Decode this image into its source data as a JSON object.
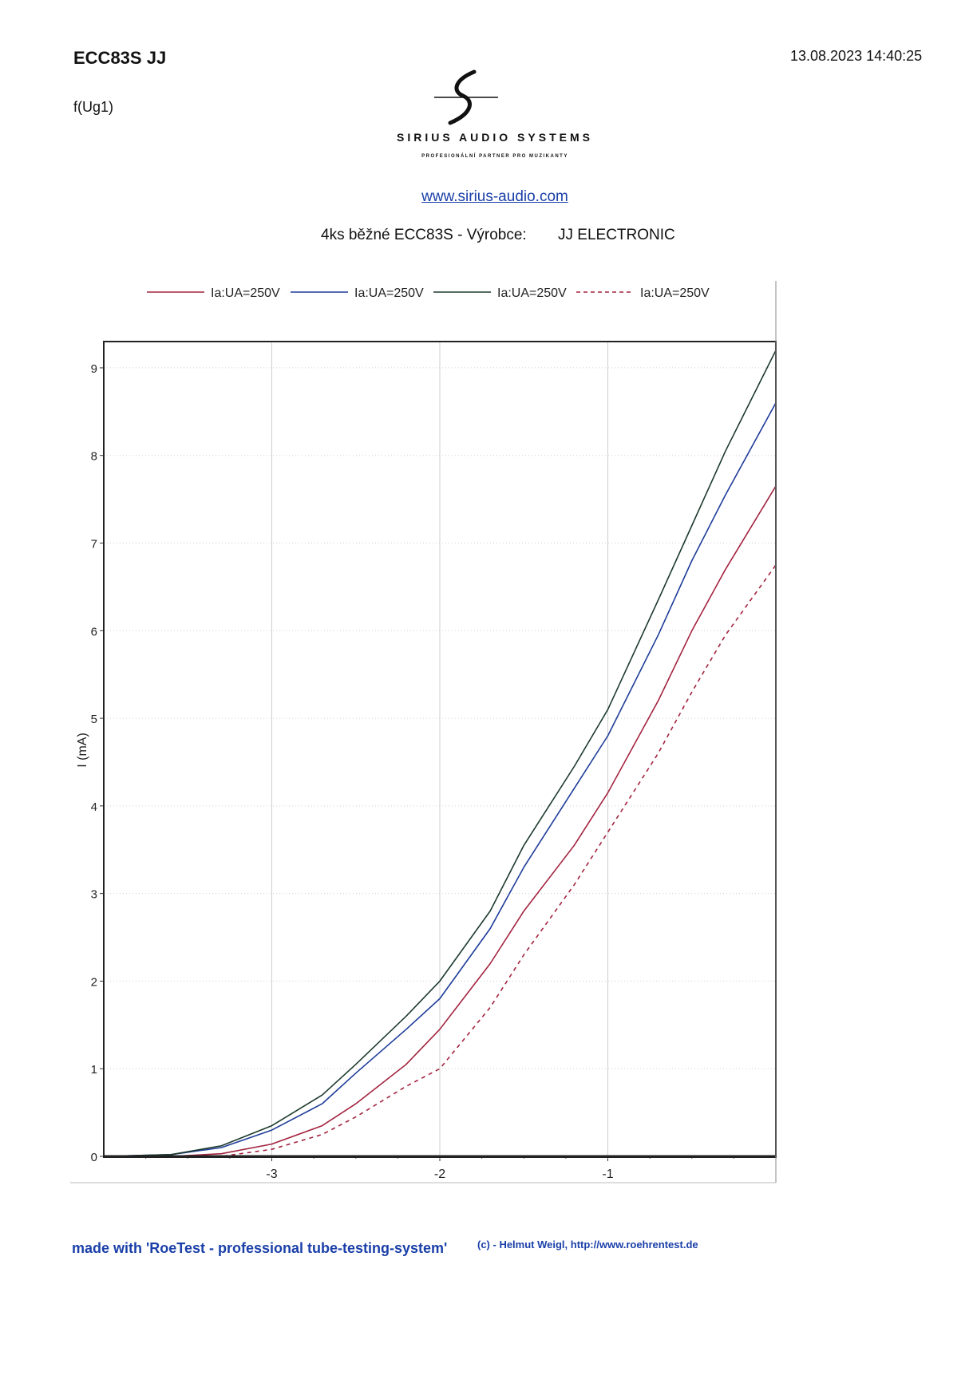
{
  "header": {
    "title": "ECC83S JJ",
    "timestamp": "13.08.2023  14:40:25",
    "function": "f(Ug1)"
  },
  "logo": {
    "name": "SIRIUS AUDIO SYSTEMS",
    "tagline": "PROFESIONÁLNÍ PARTNER PRO MUZIKANTY",
    "url": "www.sirius-audio.com"
  },
  "subtitle": {
    "description": "4ks běžné ECC83S - Výrobce:",
    "manufacturer": "JJ ELECTRONIC"
  },
  "footer": {
    "main": "made with 'RoeTest - professional tube-testing-system'",
    "credit": "(c) - Helmut Weigl, http://www.roehrentest.de"
  },
  "chart_data": {
    "type": "line",
    "title": "",
    "xlabel": "",
    "ylabel": "I (mA)",
    "xlim": [
      -4.0,
      0
    ],
    "ylim": [
      0,
      9.3
    ],
    "xticks": [
      -3,
      -2,
      -1
    ],
    "yticks": [
      0,
      1,
      2,
      3,
      4,
      5,
      6,
      7,
      8,
      9
    ],
    "grid": true,
    "legend_position": "top",
    "series": [
      {
        "name": "Ia:UA=250V",
        "color": "#a3233f",
        "dash": false,
        "x": [
          -4.0,
          -3.6,
          -3.3,
          -3.0,
          -2.7,
          -2.5,
          -2.2,
          -2.0,
          -1.7,
          -1.5,
          -1.2,
          -1.0,
          -0.7,
          -0.5,
          -0.3,
          0.0
        ],
        "y": [
          0.0,
          0.0,
          0.03,
          0.14,
          0.35,
          0.6,
          1.05,
          1.45,
          2.2,
          2.8,
          3.55,
          4.15,
          5.2,
          6.0,
          6.7,
          7.65
        ]
      },
      {
        "name": "Ia:UA=250V",
        "color": "#1e3c99",
        "dash": false,
        "x": [
          -4.0,
          -3.6,
          -3.3,
          -3.0,
          -2.7,
          -2.5,
          -2.2,
          -2.0,
          -1.7,
          -1.5,
          -1.2,
          -1.0,
          -0.7,
          -0.5,
          -0.3,
          0.0
        ],
        "y": [
          0.0,
          0.02,
          0.1,
          0.3,
          0.6,
          0.95,
          1.45,
          1.8,
          2.6,
          3.3,
          4.2,
          4.8,
          5.95,
          6.8,
          7.55,
          8.6
        ]
      },
      {
        "name": "Ia:UA=250V",
        "color": "#1c3a2c",
        "dash": false,
        "x": [
          -4.0,
          -3.6,
          -3.3,
          -3.0,
          -2.7,
          -2.5,
          -2.2,
          -2.0,
          -1.7,
          -1.5,
          -1.2,
          -1.0,
          -0.7,
          -0.5,
          -0.3,
          0.0
        ],
        "y": [
          0.0,
          0.02,
          0.12,
          0.35,
          0.7,
          1.05,
          1.6,
          2.0,
          2.8,
          3.55,
          4.45,
          5.1,
          6.35,
          7.2,
          8.05,
          9.2
        ]
      },
      {
        "name": "Ia:UA=250V",
        "color": "#a3233f",
        "dash": true,
        "x": [
          -4.0,
          -3.6,
          -3.3,
          -3.0,
          -2.7,
          -2.5,
          -2.2,
          -2.0,
          -1.7,
          -1.5,
          -1.2,
          -1.0,
          -0.7,
          -0.5,
          -0.3,
          0.0
        ],
        "y": [
          0.0,
          0.0,
          0.0,
          0.08,
          0.25,
          0.45,
          0.8,
          1.0,
          1.7,
          2.3,
          3.1,
          3.7,
          4.6,
          5.3,
          5.95,
          6.75
        ]
      }
    ]
  }
}
